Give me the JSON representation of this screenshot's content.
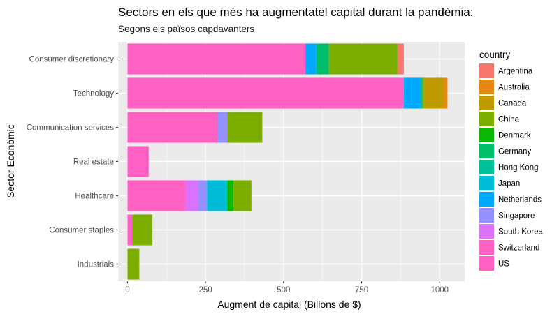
{
  "chart_data": {
    "type": "bar",
    "orientation": "horizontal",
    "stacked": true,
    "title": "Sectors en els que més ha augmentatel capital durant la pandèmia:",
    "subtitle": "Segons els països capdavanters",
    "xlabel": "Augment de capital (Billons de $)",
    "ylabel": "Sector Econòmic",
    "xlim": [
      -30,
      1080
    ],
    "xticks": [
      0,
      250,
      500,
      750,
      1000
    ],
    "grid": true,
    "legend_title": "country",
    "legend_position": "right",
    "categories": [
      "Industrials",
      "Consumer staples",
      "Healthcare",
      "Real estate",
      "Communication services",
      "Technology",
      "Consumer discretionary"
    ],
    "series": [
      {
        "name": "US",
        "color": "#FF61C3",
        "values": [
          0,
          0,
          185,
          68,
          290,
          885,
          570
        ]
      },
      {
        "name": "Switzerland",
        "color": "#FF61C3",
        "values": [
          0,
          15,
          0,
          0,
          0,
          0,
          0
        ]
      },
      {
        "name": "South Korea",
        "color": "#DB72FB",
        "values": [
          0,
          0,
          40,
          0,
          0,
          0,
          0
        ]
      },
      {
        "name": "Singapore",
        "color": "#9590FF",
        "values": [
          0,
          0,
          30,
          0,
          30,
          0,
          0
        ]
      },
      {
        "name": "Netherlands",
        "color": "#00A9FF",
        "values": [
          0,
          0,
          0,
          0,
          0,
          55,
          35
        ]
      },
      {
        "name": "Japan",
        "color": "#00BCD8",
        "values": [
          0,
          0,
          60,
          0,
          0,
          0,
          0
        ]
      },
      {
        "name": "Hong Kong",
        "color": "#00C19A",
        "values": [
          0,
          0,
          5,
          0,
          0,
          0,
          0
        ]
      },
      {
        "name": "Germany",
        "color": "#00BE67",
        "values": [
          0,
          0,
          0,
          0,
          0,
          5,
          40
        ]
      },
      {
        "name": "Denmark",
        "color": "#0CB702",
        "values": [
          0,
          0,
          20,
          0,
          0,
          0,
          0
        ]
      },
      {
        "name": "China",
        "color": "#7CAE00",
        "values": [
          38,
          65,
          57,
          0,
          112,
          5,
          220
        ]
      },
      {
        "name": "Canada",
        "color": "#C09B00",
        "values": [
          0,
          0,
          0,
          0,
          0,
          65,
          0
        ]
      },
      {
        "name": "Australia",
        "color": "#E68613",
        "values": [
          0,
          0,
          0,
          0,
          0,
          10,
          0
        ]
      },
      {
        "name": "Argentina",
        "color": "#F8766D",
        "values": [
          0,
          0,
          0,
          0,
          0,
          0,
          20
        ]
      }
    ],
    "legend_order": [
      "Argentina",
      "Australia",
      "Canada",
      "China",
      "Denmark",
      "Germany",
      "Hong Kong",
      "Japan",
      "Netherlands",
      "Singapore",
      "South Korea",
      "Switzerland",
      "US"
    ]
  },
  "colors": {
    "panel_background": "#EBEBEB",
    "grid_major": "#FFFFFF"
  }
}
